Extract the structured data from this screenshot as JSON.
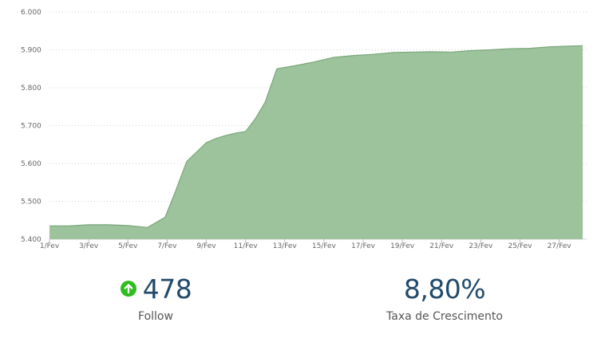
{
  "colors": {
    "area_fill": "#9dc39d",
    "area_line": "#7aa67a",
    "grid": "#d0d0d0",
    "value_text": "#214a6b",
    "up_icon": "#2ebd1e"
  },
  "chart_data": {
    "type": "area",
    "title": "",
    "xlabel": "",
    "ylabel": "",
    "grid": true,
    "ylim": [
      5400,
      6000
    ],
    "xlim": [
      1,
      28.4
    ],
    "y_ticks": [
      {
        "value": 5400,
        "label": "5.400"
      },
      {
        "value": 5500,
        "label": "5.500"
      },
      {
        "value": 5600,
        "label": "5.600"
      },
      {
        "value": 5700,
        "label": "5.700"
      },
      {
        "value": 5800,
        "label": "5.800"
      },
      {
        "value": 5900,
        "label": "5.900"
      },
      {
        "value": 6000,
        "label": "6.000"
      }
    ],
    "x_ticks": [
      {
        "day": 1,
        "label": "1/Fev"
      },
      {
        "day": 3,
        "label": "3/Fev"
      },
      {
        "day": 5,
        "label": "5/Fev"
      },
      {
        "day": 7,
        "label": "7/Fev"
      },
      {
        "day": 9,
        "label": "9/Fev"
      },
      {
        "day": 11,
        "label": "11/Fev"
      },
      {
        "day": 13,
        "label": "13/Fev"
      },
      {
        "day": 15,
        "label": "15/Fev"
      },
      {
        "day": 17,
        "label": "17/Fev"
      },
      {
        "day": 19,
        "label": "19/Fev"
      },
      {
        "day": 21,
        "label": "21/Fev"
      },
      {
        "day": 23,
        "label": "23/Fev"
      },
      {
        "day": 25,
        "label": "25/Fev"
      },
      {
        "day": 27,
        "label": "27/Fev"
      }
    ],
    "series": [
      {
        "name": "Follow",
        "points": [
          [
            1.0,
            5435
          ],
          [
            2.0,
            5435
          ],
          [
            3.0,
            5438
          ],
          [
            4.0,
            5438
          ],
          [
            5.0,
            5436
          ],
          [
            6.0,
            5431
          ],
          [
            6.9,
            5458
          ],
          [
            7.4,
            5523
          ],
          [
            8.0,
            5605
          ],
          [
            9.0,
            5655
          ],
          [
            9.5,
            5666
          ],
          [
            10.0,
            5674
          ],
          [
            10.6,
            5681
          ],
          [
            11.0,
            5684
          ],
          [
            11.5,
            5718
          ],
          [
            12.0,
            5762
          ],
          [
            12.6,
            5850
          ],
          [
            13.5,
            5858
          ],
          [
            14.5,
            5868
          ],
          [
            15.5,
            5880
          ],
          [
            16.5,
            5885
          ],
          [
            17.5,
            5888
          ],
          [
            18.5,
            5893
          ],
          [
            19.5,
            5894
          ],
          [
            20.5,
            5895
          ],
          [
            21.5,
            5894
          ],
          [
            22.5,
            5898
          ],
          [
            23.5,
            5900
          ],
          [
            24.5,
            5903
          ],
          [
            25.5,
            5904
          ],
          [
            26.5,
            5908
          ],
          [
            27.5,
            5910
          ],
          [
            28.2,
            5911
          ]
        ]
      }
    ]
  },
  "stats": {
    "follow": {
      "value": "478",
      "label": "Follow",
      "icon": "arrow-up-circle-icon"
    },
    "growth": {
      "value": "8,80%",
      "label": "Taxa de Crescimento"
    }
  }
}
